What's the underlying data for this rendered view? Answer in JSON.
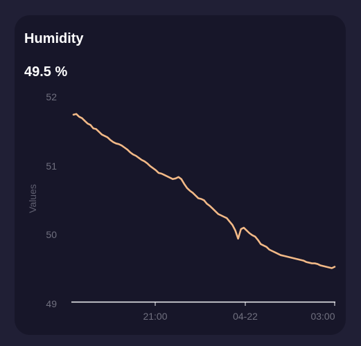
{
  "card": {
    "title": "Humidity",
    "current_value": "49.5 %"
  },
  "colors": {
    "background": "#201f35",
    "card": "#171629",
    "line": "#f2b987",
    "text": "#ffffff",
    "muted": "#70707f"
  },
  "chart_data": {
    "type": "line",
    "title": "Humidity",
    "xlabel": "",
    "ylabel": "Values",
    "ylim": [
      49,
      52
    ],
    "yticks": [
      "52",
      "51",
      "50",
      "49"
    ],
    "xticks": [
      "21:00",
      "04-22",
      "03:00"
    ],
    "grid": false,
    "legend": "none",
    "series": [
      {
        "values": [
          51.73,
          51.74,
          51.7,
          51.68,
          51.64,
          51.6,
          51.58,
          51.53,
          51.52,
          51.48,
          51.44,
          51.42,
          51.4,
          51.36,
          51.33,
          51.31,
          51.3,
          51.28,
          51.25,
          51.22,
          51.18,
          51.15,
          51.13,
          51.1,
          51.07,
          51.05,
          51.02,
          50.98,
          50.95,
          50.92,
          50.88,
          50.87,
          50.85,
          50.83,
          50.81,
          50.79,
          50.8,
          50.82,
          50.79,
          50.72,
          50.66,
          50.62,
          50.59,
          50.55,
          50.51,
          50.5,
          50.48,
          50.43,
          50.4,
          50.36,
          50.32,
          50.28,
          50.26,
          50.24,
          50.22,
          50.17,
          50.12,
          50.04,
          49.92,
          50.06,
          50.08,
          50.04,
          50.0,
          49.97,
          49.95,
          49.9,
          49.84,
          49.82,
          49.8,
          49.76,
          49.74,
          49.72,
          49.7,
          49.68,
          49.67,
          49.66,
          49.65,
          49.64,
          49.63,
          49.62,
          49.61,
          49.6,
          49.58,
          49.57,
          49.56,
          49.56,
          49.55,
          49.53,
          49.52,
          49.51,
          49.5,
          49.49,
          49.51
        ]
      }
    ]
  }
}
